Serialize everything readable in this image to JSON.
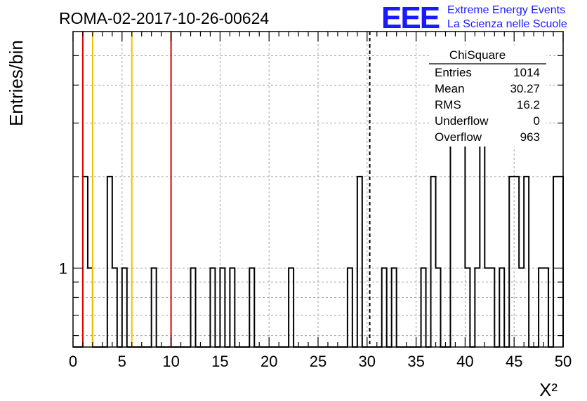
{
  "header": {
    "title": "ROMA-02-2017-10-26-00624",
    "logo_letters": "EEE",
    "logo_line1": "Extreme Energy Events",
    "logo_line2": "La Scienza nelle Scuole"
  },
  "stats": {
    "name": "ChiSquare",
    "rows": [
      {
        "label": "Entries",
        "value": "1014"
      },
      {
        "label": "Mean",
        "value": "30.27"
      },
      {
        "label": "RMS",
        "value": "16.2"
      },
      {
        "label": "Underflow",
        "value": "0"
      },
      {
        "label": "Overflow",
        "value": "963"
      }
    ]
  },
  "colors": {
    "histogram": "#000000",
    "red_line": "#dd0000",
    "yellow_line": "#f2c200",
    "grid": "#a0a0a0",
    "logo": "#1a1aff"
  },
  "chart_data": {
    "type": "bar",
    "title": "ROMA-02-2017-10-26-00624",
    "xlabel": "X²",
    "ylabel": "Entries/bin",
    "xlim": [
      0,
      50
    ],
    "ylim": [
      0.55,
      6
    ],
    "log_y": true,
    "x_ticks": [
      0,
      5,
      10,
      15,
      20,
      25,
      30,
      35,
      40,
      45,
      50
    ],
    "y_tick_labels": [
      {
        "value": 1,
        "label": "1"
      }
    ],
    "bin_width": 0.5,
    "grid": true,
    "bins": [
      {
        "x": 1.0,
        "y": 2
      },
      {
        "x": 1.5,
        "y": 1
      },
      {
        "x": 3.5,
        "y": 2
      },
      {
        "x": 4.0,
        "y": 1
      },
      {
        "x": 5.0,
        "y": 1
      },
      {
        "x": 8.0,
        "y": 1
      },
      {
        "x": 12.0,
        "y": 1
      },
      {
        "x": 14.0,
        "y": 1
      },
      {
        "x": 15.0,
        "y": 1
      },
      {
        "x": 16.0,
        "y": 1
      },
      {
        "x": 18.0,
        "y": 1
      },
      {
        "x": 22.0,
        "y": 1
      },
      {
        "x": 28.0,
        "y": 1
      },
      {
        "x": 29.0,
        "y": 2
      },
      {
        "x": 31.5,
        "y": 1
      },
      {
        "x": 32.5,
        "y": 1
      },
      {
        "x": 35.5,
        "y": 1
      },
      {
        "x": 36.5,
        "y": 2
      },
      {
        "x": 37.0,
        "y": 1
      },
      {
        "x": 38.5,
        "y": 4
      },
      {
        "x": 39.0,
        "y": 3
      },
      {
        "x": 39.5,
        "y": 3
      },
      {
        "x": 40.0,
        "y": 1
      },
      {
        "x": 41.0,
        "y": 1
      },
      {
        "x": 41.5,
        "y": 3
      },
      {
        "x": 42.0,
        "y": 1
      },
      {
        "x": 42.5,
        "y": 1
      },
      {
        "x": 43.5,
        "y": 1
      },
      {
        "x": 44.5,
        "y": 2
      },
      {
        "x": 45.0,
        "y": 2
      },
      {
        "x": 45.5,
        "y": 1
      },
      {
        "x": 46.0,
        "y": 2
      },
      {
        "x": 47.5,
        "y": 1
      },
      {
        "x": 48.0,
        "y": 1
      },
      {
        "x": 49.0,
        "y": 2
      },
      {
        "x": 49.5,
        "y": 2
      }
    ],
    "vertical_lines": [
      {
        "x": 1.0,
        "style": "solid",
        "color": "red"
      },
      {
        "x": 10.0,
        "style": "solid",
        "color": "red"
      },
      {
        "x": 2.0,
        "style": "solid",
        "color": "yellow"
      },
      {
        "x": 6.0,
        "style": "solid",
        "color": "yellow"
      },
      {
        "x": 30.27,
        "style": "dashed",
        "color": "black"
      }
    ]
  }
}
